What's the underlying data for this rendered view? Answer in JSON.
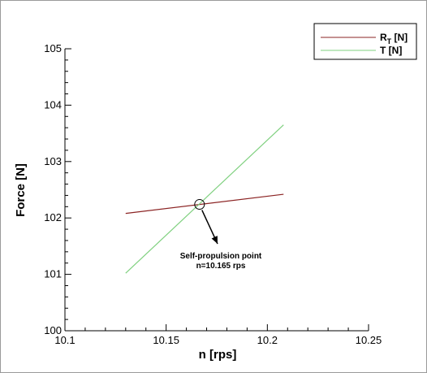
{
  "chart_data": {
    "type": "line",
    "xlabel": "n [rps]",
    "ylabel": "Force [N]",
    "xlim": [
      10.1,
      10.25
    ],
    "ylim": [
      100,
      105
    ],
    "xticks": [
      "10.1",
      "10.15",
      "10.2",
      "10.25"
    ],
    "yticks": [
      "100",
      "101",
      "102",
      "103",
      "104",
      "105"
    ],
    "grid": false,
    "legend_position": "top-right",
    "series": [
      {
        "name_main": "R",
        "name_sub": "T",
        "name_suffix": " [N]",
        "color": "#8b2323",
        "x": [
          10.13,
          10.208
        ],
        "y": [
          102.08,
          102.42
        ]
      },
      {
        "name": "T [N]",
        "color": "#7fd07f",
        "x": [
          10.13,
          10.208
        ],
        "y": [
          101.02,
          103.65
        ]
      }
    ],
    "annotation": {
      "line1": "Self-propulsion point",
      "line2": "n=10.165 rps",
      "point": {
        "x": 10.1665,
        "y": 102.24
      }
    }
  },
  "colors": {
    "frame": "#9a9a9a",
    "axis": "#000000"
  }
}
